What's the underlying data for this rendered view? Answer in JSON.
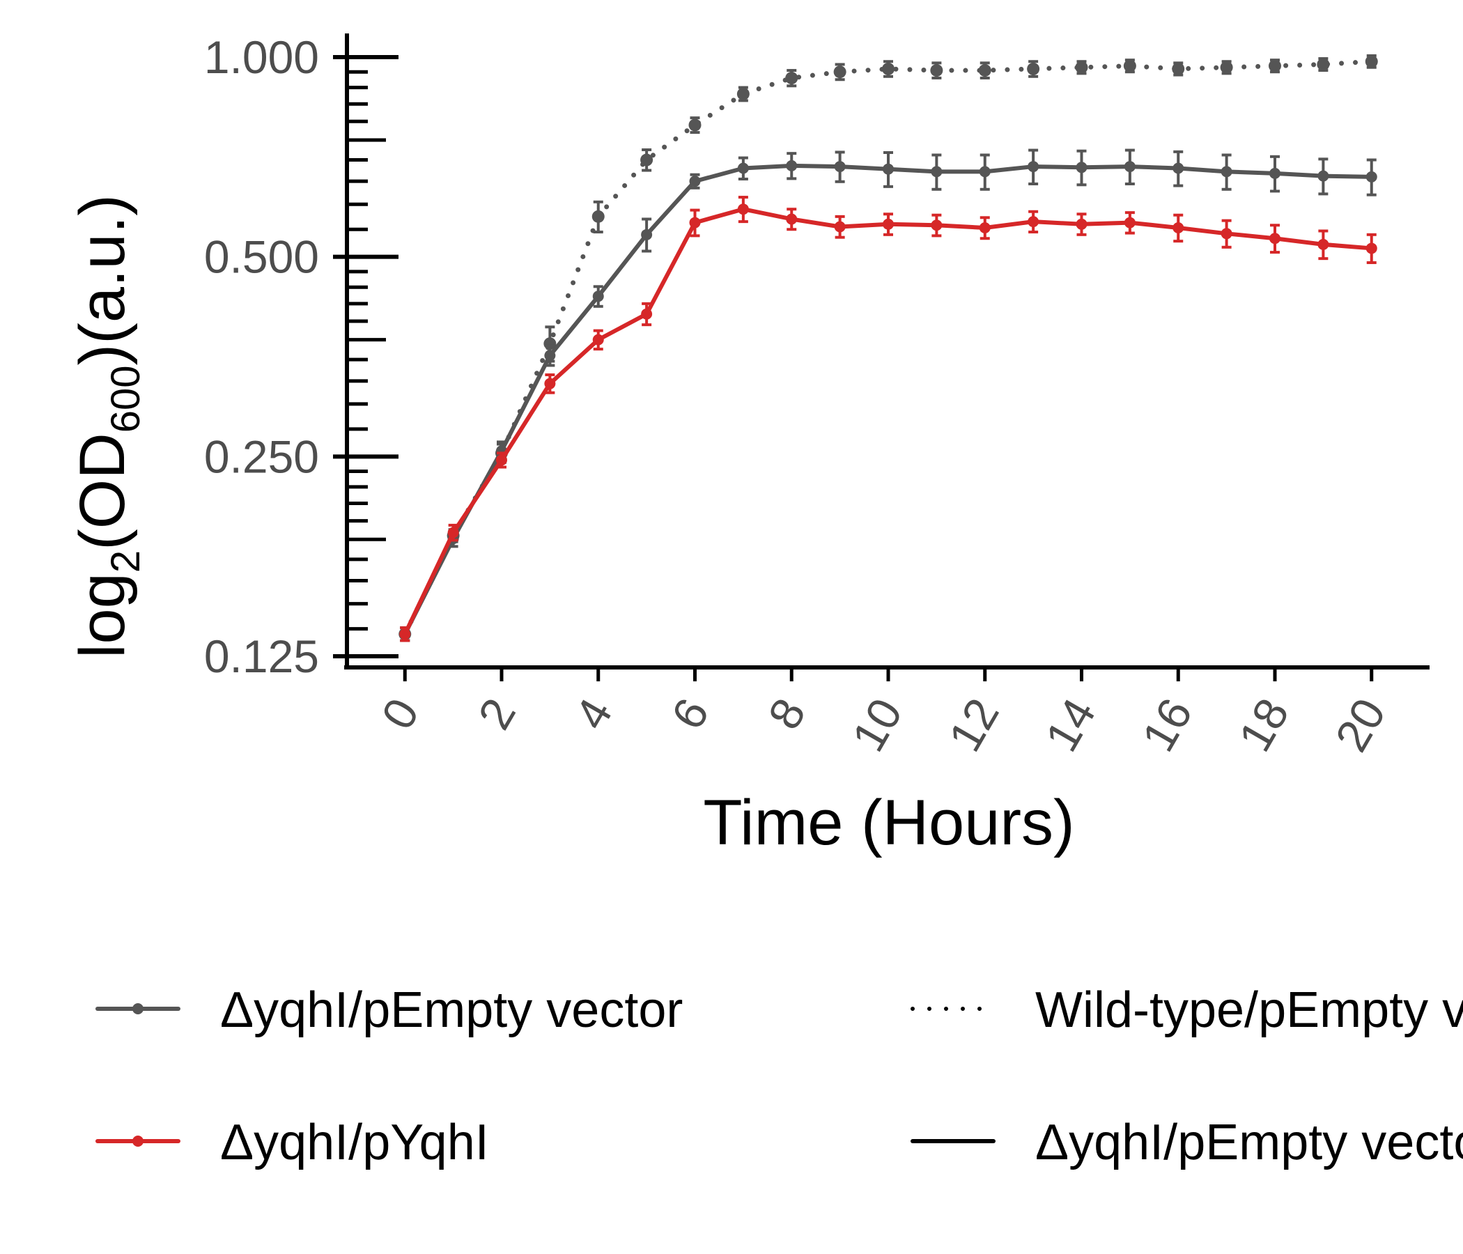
{
  "chart_data": {
    "type": "line",
    "ylabel": {
      "base": "log",
      "sub": "2",
      "inner": "OD",
      "inner_sub": "600",
      "unit": "(a.u.)"
    },
    "xlabel": "Time (Hours)",
    "x_ticks": [
      0,
      2,
      4,
      6,
      8,
      10,
      12,
      14,
      16,
      18,
      20
    ],
    "x_tick_labels": [
      "0",
      "2",
      "4",
      "6",
      "8",
      "10",
      "12",
      "14",
      "16",
      "18",
      "20"
    ],
    "y_ticks": [
      0.125,
      0.25,
      0.5,
      1.0
    ],
    "y_tick_labels": [
      "0.125",
      "0.250",
      "0.500",
      "1.000"
    ],
    "y_scale": "log2",
    "ylim": [
      0.125,
      1.0
    ],
    "xlim": [
      -1.2,
      21.2
    ],
    "x": [
      0,
      1,
      2,
      3,
      4,
      5,
      6,
      7,
      8,
      9,
      10,
      11,
      12,
      13,
      14,
      15,
      16,
      17,
      18,
      19,
      20
    ],
    "series": [
      {
        "name": "Wild-type/pEmpty vector",
        "color": "#555555",
        "dash": "dotted",
        "values": [
          0.135,
          0.19,
          0.253,
          0.37,
          0.575,
          0.7,
          0.79,
          0.88,
          0.93,
          0.95,
          0.96,
          0.955,
          0.955,
          0.96,
          0.965,
          0.97,
          0.96,
          0.965,
          0.97,
          0.975,
          0.985
        ],
        "errors": [
          0.003,
          0.004,
          0.008,
          0.022,
          0.03,
          0.025,
          0.02,
          0.02,
          0.025,
          0.025,
          0.025,
          0.025,
          0.025,
          0.025,
          0.02,
          0.02,
          0.02,
          0.02,
          0.02,
          0.02,
          0.02
        ]
      },
      {
        "name": "ΔyqhI/pEmpty vector",
        "color": "#555555",
        "dash": "solid",
        "values": [
          0.135,
          0.188,
          0.255,
          0.355,
          0.436,
          0.54,
          0.65,
          0.68,
          0.686,
          0.684,
          0.678,
          0.672,
          0.672,
          0.684,
          0.682,
          0.684,
          0.68,
          0.672,
          0.668,
          0.662,
          0.66
        ],
        "errors": [
          0.003,
          0.005,
          0.008,
          0.012,
          0.015,
          0.03,
          0.015,
          0.025,
          0.03,
          0.035,
          0.04,
          0.04,
          0.04,
          0.04,
          0.04,
          0.04,
          0.04,
          0.04,
          0.04,
          0.04,
          0.04
        ]
      },
      {
        "name": "ΔyqhI/pYqhI",
        "color": "#d62728",
        "dash": "solid",
        "values": [
          0.135,
          0.192,
          0.247,
          0.322,
          0.375,
          0.41,
          0.563,
          0.59,
          0.57,
          0.555,
          0.56,
          0.558,
          0.553,
          0.565,
          0.56,
          0.563,
          0.553,
          0.542,
          0.533,
          0.522,
          0.515
        ],
        "errors": [
          0.003,
          0.005,
          0.006,
          0.01,
          0.012,
          0.015,
          0.025,
          0.025,
          0.02,
          0.02,
          0.02,
          0.02,
          0.02,
          0.02,
          0.02,
          0.02,
          0.025,
          0.025,
          0.025,
          0.025,
          0.025
        ]
      }
    ],
    "legend": {
      "placement": "bottom",
      "entries": [
        {
          "label": "ΔyqhI/pEmpty vector",
          "color": "#555555",
          "dash": "solid",
          "point": true
        },
        {
          "label": "Wild-type/pEmpty vector",
          "color": "#000000",
          "dash": "dotted",
          "point": false
        },
        {
          "label": "ΔyqhI/pYqhI",
          "color": "#d62728",
          "dash": "solid",
          "point": true
        },
        {
          "label": "ΔyqhI/pEmpty vector",
          "color": "#000000",
          "dash": "solid",
          "point": false
        }
      ]
    }
  }
}
